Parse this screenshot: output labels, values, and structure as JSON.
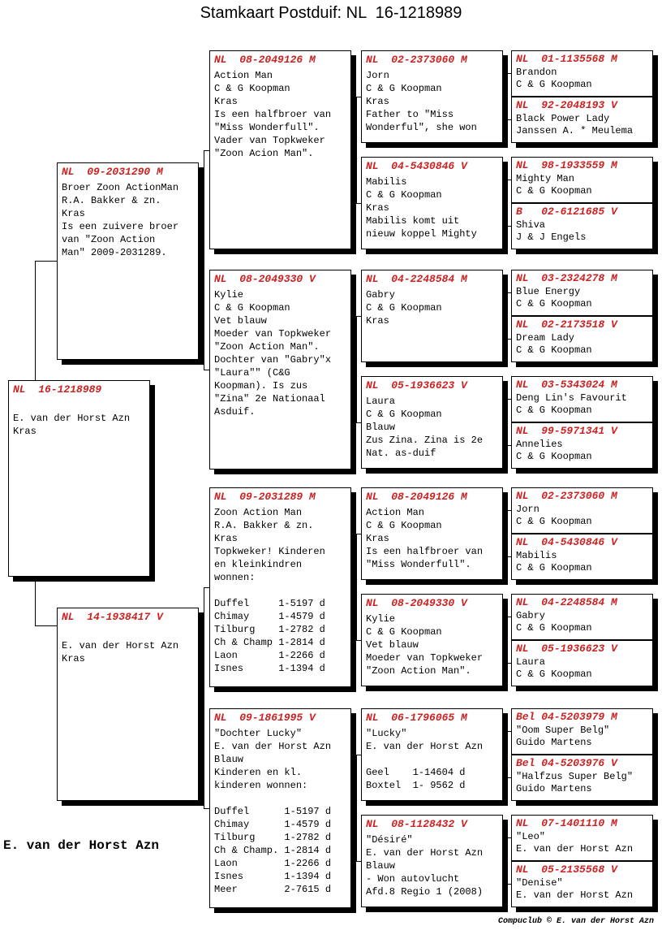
{
  "title": "Stamkaart Postduif: NL  16-1218989",
  "footer_left": "E. van der Horst Azn",
  "footer_right": "Compuclub © E. van der Horst Azn",
  "colors": {
    "ring_red": "#cc2222",
    "line_black": "#000000",
    "box_bg": "#ffffff"
  },
  "boxes": [
    {
      "id": "subject",
      "generation": "subject",
      "header": "NL  16-1218989",
      "body": [
        "",
        "E. van der Horst Azn",
        "Kras"
      ]
    },
    {
      "id": "father",
      "generation": "parent",
      "header": "NL  09-2031290 M",
      "body": [
        "Broer Zoon ActionMan",
        "R.A. Bakker & zn.",
        "Kras",
        "Is een zuivere broer",
        "van \"Zoon Action",
        "Man\" 2009-2031289."
      ]
    },
    {
      "id": "mother",
      "generation": "parent",
      "header": "NL  14-1938417 V",
      "body": [
        "",
        "E. van der Horst Azn",
        "Kras"
      ]
    },
    {
      "id": "gp1",
      "generation": "grandparent",
      "header": "NL  08-2049126 M",
      "body": [
        "Action Man",
        "C & G Koopman",
        "Kras",
        "Is een halfbroer van",
        "\"Miss Wonderfull\".",
        "Vader van Topkweker",
        "\"Zoon Acion Man\"."
      ]
    },
    {
      "id": "gp2",
      "generation": "grandparent",
      "header": "NL  08-2049330 V",
      "body": [
        "Kylie",
        "C & G Koopman",
        "Vet blauw",
        "Moeder van Topkweker",
        "\"Zoon Action Man\".",
        "Dochter van \"Gabry\"x",
        "\"Laura\"\" (C&G",
        "Koopman). Is zus",
        "\"Zina\" 2e Nationaal",
        "Asduif."
      ]
    },
    {
      "id": "gp3",
      "generation": "grandparent",
      "header": "NL  09-2031289 M",
      "body": [
        "Zoon Action Man",
        "R.A. Bakker & zn.",
        "Kras",
        "Topkweker! Kinderen",
        "en kleinkindren",
        "wonnen:",
        "",
        "Duffel     1-5197 d",
        "Chimay     1-4579 d",
        "Tilburg    1-2782 d",
        "Ch & Champ 1-2814 d",
        "Laon       1-2266 d",
        "Isnes      1-1394 d"
      ]
    },
    {
      "id": "gp4",
      "generation": "grandparent",
      "header": "NL  09-1861995 V",
      "body": [
        "\"Dochter Lucky\"",
        "E. van der Horst Azn",
        "Blauw",
        "Kinderen en kl.",
        "kinderen wonnen:",
        "",
        "Duffel      1-5197 d",
        "Chimay      1-4579 d",
        "Tilburg     1-2782 d",
        "Ch & Champ. 1-2814 d",
        "Laon        1-2266 d",
        "Isnes       1-1394 d",
        "Meer        2-7615 d"
      ]
    },
    {
      "id": "ggp1",
      "generation": "great-grandparent",
      "header": "NL  02-2373060 M",
      "body": [
        "Jorn",
        "C & G Koopman",
        "Kras",
        "Father to \"Miss",
        "Wonderful\", she won"
      ]
    },
    {
      "id": "ggp2",
      "generation": "great-grandparent",
      "header": "NL  04-5430846 V",
      "body": [
        "Mabilis",
        "C & G Koopman",
        "Kras",
        "Mabilis komt uit",
        "nieuw koppel Mighty"
      ]
    },
    {
      "id": "ggp3",
      "generation": "great-grandparent",
      "header": "NL  04-2248584 M",
      "body": [
        "Gabry",
        "C & G Koopman",
        "Kras"
      ]
    },
    {
      "id": "ggp4",
      "generation": "great-grandparent",
      "header": "NL  05-1936623 V",
      "body": [
        "Laura",
        "C & G Koopman",
        "Blauw",
        "Zus Zina. Zina is 2e",
        "Nat. as-duif"
      ]
    },
    {
      "id": "ggp5",
      "generation": "great-grandparent",
      "header": "NL  08-2049126 M",
      "body": [
        "Action Man",
        "C & G Koopman",
        "Kras",
        "Is een halfbroer van",
        "\"Miss Wonderfull\"."
      ]
    },
    {
      "id": "ggp6",
      "generation": "great-grandparent",
      "header": "NL  08-2049330 V",
      "body": [
        "Kylie",
        "C & G Koopman",
        "Vet blauw",
        "Moeder van Topkweker",
        "\"Zoon Action Man\"."
      ]
    },
    {
      "id": "ggp7",
      "generation": "great-grandparent",
      "header": "NL  06-1796065 M",
      "body": [
        "\"Lucky\"",
        "E. van der Horst Azn",
        "",
        "Geel    1-14604 d",
        "Boxtel  1- 9562 d"
      ]
    },
    {
      "id": "ggp8",
      "generation": "great-grandparent",
      "header": "NL  08-1128432 V",
      "body": [
        "\"Désiré\"",
        "E. van der Horst Azn",
        "Blauw",
        "- Won autovlucht",
        "Afd.8 Regio 1 (2008)"
      ]
    },
    {
      "id": "p1a",
      "generation": "great-great-grandparent",
      "header": "NL  01-1135568 M",
      "body": [
        "Brandon",
        "C & G Koopman"
      ]
    },
    {
      "id": "p1b",
      "generation": "great-great-grandparent",
      "header": "NL  92-2048193 V",
      "body": [
        "Black Power Lady",
        "Janssen A. * Meulema"
      ]
    },
    {
      "id": "p2a",
      "generation": "great-great-grandparent",
      "header": "NL  98-1933559 M",
      "body": [
        "Mighty Man",
        "C & G Koopman"
      ]
    },
    {
      "id": "p2b",
      "generation": "great-great-grandparent",
      "header": "B   02-6121685 V",
      "body": [
        "Shiva",
        "J & J Engels"
      ]
    },
    {
      "id": "p3a",
      "generation": "great-great-grandparent",
      "header": "NL  03-2324278 M",
      "body": [
        "Blue Energy",
        "C & G Koopman"
      ]
    },
    {
      "id": "p3b",
      "generation": "great-great-grandparent",
      "header": "NL  02-2173518 V",
      "body": [
        "Dream Lady",
        "C & G Koopman"
      ]
    },
    {
      "id": "p4a",
      "generation": "great-great-grandparent",
      "header": "NL  03-5343024 M",
      "body": [
        "Deng Lin's Favourit",
        "C & G Koopman"
      ]
    },
    {
      "id": "p4b",
      "generation": "great-great-grandparent",
      "header": "NL  99-5971341 V",
      "body": [
        "Annelies",
        "C & G Koopman"
      ]
    },
    {
      "id": "p5a",
      "generation": "great-great-grandparent",
      "header": "NL  02-2373060 M",
      "body": [
        "Jorn",
        "C & G Koopman"
      ]
    },
    {
      "id": "p5b",
      "generation": "great-great-grandparent",
      "header": "NL  04-5430846 V",
      "body": [
        "Mabilis",
        "C & G Koopman"
      ]
    },
    {
      "id": "p6a",
      "generation": "great-great-grandparent",
      "header": "NL  04-2248584 M",
      "body": [
        "Gabry",
        "C & G Koopman"
      ]
    },
    {
      "id": "p6b",
      "generation": "great-great-grandparent",
      "header": "NL  05-1936623 V",
      "body": [
        "Laura",
        "C & G Koopman"
      ]
    },
    {
      "id": "p7a",
      "generation": "great-great-grandparent",
      "header": "Bel 04-5203979 M",
      "body": [
        "\"Oom Super Belg\"",
        "Guido Martens"
      ]
    },
    {
      "id": "p7b",
      "generation": "great-great-grandparent",
      "header": "Bel 04-5203976 V",
      "body": [
        "\"Halfzus Super Belg\"",
        "Guido Martens"
      ]
    },
    {
      "id": "p8a",
      "generation": "great-great-grandparent",
      "header": "NL  07-1401110 M",
      "body": [
        "\"Leo\"",
        "E. van der Horst Azn"
      ]
    },
    {
      "id": "p8b",
      "generation": "great-great-grandparent",
      "header": "NL  05-2135568 V",
      "body": [
        "\"Denise\"",
        "E. van der Horst Azn"
      ]
    }
  ]
}
